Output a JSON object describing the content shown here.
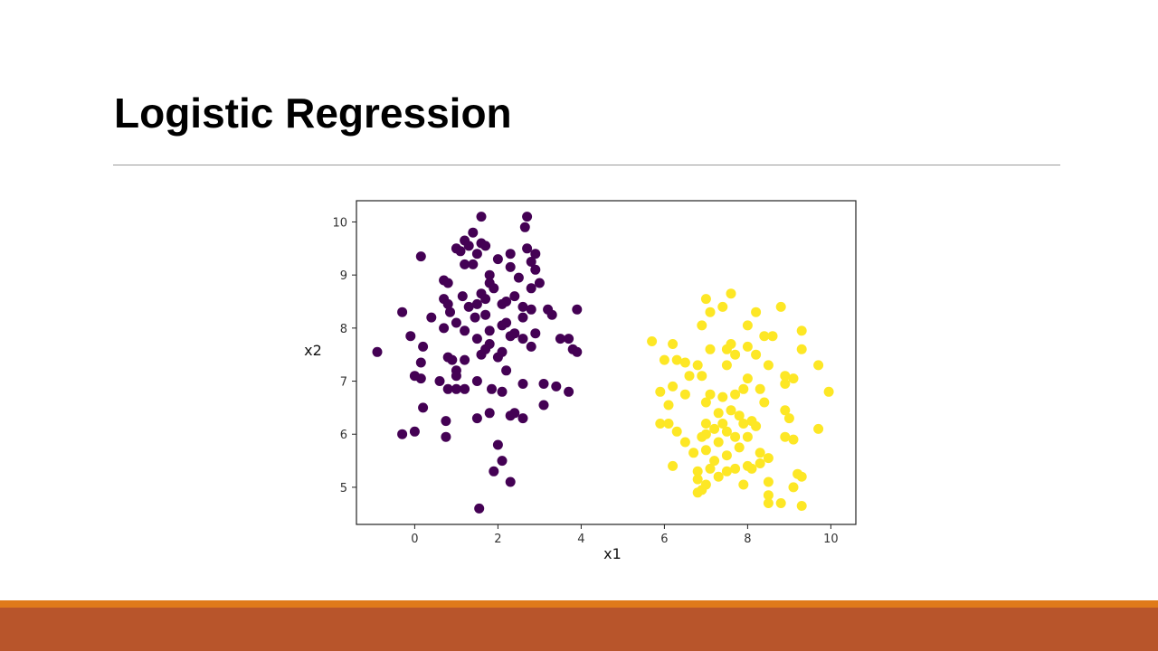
{
  "slide": {
    "title": "Logistic Regression"
  },
  "colors": {
    "class0": "#440154",
    "class1": "#fde725",
    "footer_stripe": "#e07a1a",
    "footer_bar": "#b8552b",
    "rule": "#9a9a9a"
  },
  "chart_data": {
    "type": "scatter",
    "title": "",
    "xlabel": "x1",
    "ylabel": "x2",
    "xlim": [
      -1.4,
      10.6
    ],
    "ylim": [
      4.3,
      10.4
    ],
    "xticks": [
      0,
      2,
      4,
      6,
      8,
      10
    ],
    "yticks": [
      5,
      6,
      7,
      8,
      9,
      10
    ],
    "grid": false,
    "legend": "none",
    "series": [
      {
        "color": "#440154",
        "points": [
          [
            2.7,
            10.1
          ],
          [
            1.6,
            10.1
          ],
          [
            2.65,
            9.9
          ],
          [
            1.4,
            9.8
          ],
          [
            1.2,
            9.65
          ],
          [
            1.6,
            9.6
          ],
          [
            1.0,
            9.5
          ],
          [
            1.3,
            9.55
          ],
          [
            1.7,
            9.55
          ],
          [
            2.7,
            9.5
          ],
          [
            1.1,
            9.45
          ],
          [
            1.5,
            9.4
          ],
          [
            2.3,
            9.4
          ],
          [
            2.9,
            9.4
          ],
          [
            0.15,
            9.35
          ],
          [
            2.0,
            9.3
          ],
          [
            2.8,
            9.25
          ],
          [
            1.2,
            9.2
          ],
          [
            1.4,
            9.2
          ],
          [
            2.3,
            9.15
          ],
          [
            2.9,
            9.1
          ],
          [
            1.8,
            9.0
          ],
          [
            2.5,
            8.95
          ],
          [
            0.7,
            8.9
          ],
          [
            0.8,
            8.85
          ],
          [
            1.8,
            8.85
          ],
          [
            3.0,
            8.85
          ],
          [
            2.8,
            8.75
          ],
          [
            1.9,
            8.75
          ],
          [
            1.6,
            8.65
          ],
          [
            2.4,
            8.6
          ],
          [
            0.7,
            8.55
          ],
          [
            1.15,
            8.6
          ],
          [
            1.7,
            8.55
          ],
          [
            2.2,
            8.5
          ],
          [
            0.8,
            8.45
          ],
          [
            1.5,
            8.45
          ],
          [
            2.1,
            8.45
          ],
          [
            2.6,
            8.4
          ],
          [
            1.3,
            8.4
          ],
          [
            2.8,
            8.35
          ],
          [
            3.2,
            8.35
          ],
          [
            3.9,
            8.35
          ],
          [
            -0.3,
            8.3
          ],
          [
            0.85,
            8.3
          ],
          [
            1.7,
            8.25
          ],
          [
            3.3,
            8.25
          ],
          [
            1.45,
            8.2
          ],
          [
            2.6,
            8.2
          ],
          [
            0.4,
            8.2
          ],
          [
            2.2,
            8.1
          ],
          [
            1.0,
            8.1
          ],
          [
            2.1,
            8.05
          ],
          [
            0.7,
            8.0
          ],
          [
            1.8,
            7.95
          ],
          [
            2.4,
            7.9
          ],
          [
            2.9,
            7.9
          ],
          [
            1.2,
            7.95
          ],
          [
            -0.1,
            7.85
          ],
          [
            2.3,
            7.85
          ],
          [
            2.6,
            7.8
          ],
          [
            1.5,
            7.8
          ],
          [
            3.5,
            7.8
          ],
          [
            3.7,
            7.8
          ],
          [
            0.2,
            7.65
          ],
          [
            1.8,
            7.7
          ],
          [
            2.8,
            7.65
          ],
          [
            3.8,
            7.6
          ],
          [
            1.7,
            7.6
          ],
          [
            2.1,
            7.55
          ],
          [
            -0.9,
            7.55
          ],
          [
            3.9,
            7.55
          ],
          [
            1.6,
            7.5
          ],
          [
            0.8,
            7.45
          ],
          [
            2.0,
            7.45
          ],
          [
            0.9,
            7.4
          ],
          [
            1.2,
            7.4
          ],
          [
            0.15,
            7.35
          ],
          [
            2.2,
            7.2
          ],
          [
            1.0,
            7.2
          ],
          [
            1.0,
            7.1
          ],
          [
            0.0,
            7.1
          ],
          [
            0.15,
            7.05
          ],
          [
            0.6,
            7.0
          ],
          [
            1.5,
            7.0
          ],
          [
            2.6,
            6.95
          ],
          [
            3.1,
            6.95
          ],
          [
            3.4,
            6.9
          ],
          [
            1.0,
            6.85
          ],
          [
            1.2,
            6.85
          ],
          [
            0.8,
            6.85
          ],
          [
            1.85,
            6.85
          ],
          [
            3.7,
            6.8
          ],
          [
            2.1,
            6.8
          ],
          [
            3.1,
            6.55
          ],
          [
            0.2,
            6.5
          ],
          [
            2.4,
            6.4
          ],
          [
            1.8,
            6.4
          ],
          [
            2.3,
            6.35
          ],
          [
            2.6,
            6.3
          ],
          [
            1.5,
            6.3
          ],
          [
            0.75,
            6.25
          ],
          [
            -0.3,
            6.0
          ],
          [
            0.0,
            6.05
          ],
          [
            0.75,
            5.95
          ],
          [
            2.0,
            5.8
          ],
          [
            2.1,
            5.5
          ],
          [
            1.9,
            5.3
          ],
          [
            2.3,
            5.1
          ],
          [
            1.55,
            4.6
          ]
        ]
      },
      {
        "color": "#fde725",
        "points": [
          [
            7.6,
            8.65
          ],
          [
            7.0,
            8.55
          ],
          [
            7.4,
            8.4
          ],
          [
            7.1,
            8.3
          ],
          [
            8.8,
            8.4
          ],
          [
            8.2,
            8.3
          ],
          [
            6.9,
            8.05
          ],
          [
            8.0,
            8.05
          ],
          [
            8.4,
            7.85
          ],
          [
            8.6,
            7.85
          ],
          [
            9.3,
            7.95
          ],
          [
            5.7,
            7.75
          ],
          [
            6.2,
            7.7
          ],
          [
            7.6,
            7.7
          ],
          [
            8.0,
            7.65
          ],
          [
            7.1,
            7.6
          ],
          [
            7.5,
            7.6
          ],
          [
            9.3,
            7.6
          ],
          [
            7.7,
            7.5
          ],
          [
            8.2,
            7.5
          ],
          [
            6.0,
            7.4
          ],
          [
            6.3,
            7.4
          ],
          [
            6.5,
            7.35
          ],
          [
            6.8,
            7.3
          ],
          [
            7.5,
            7.3
          ],
          [
            8.5,
            7.3
          ],
          [
            9.7,
            7.3
          ],
          [
            8.9,
            7.1
          ],
          [
            9.1,
            7.05
          ],
          [
            6.6,
            7.1
          ],
          [
            6.9,
            7.1
          ],
          [
            8.0,
            7.05
          ],
          [
            8.9,
            6.95
          ],
          [
            6.2,
            6.9
          ],
          [
            7.9,
            6.85
          ],
          [
            8.3,
            6.85
          ],
          [
            6.5,
            6.75
          ],
          [
            7.1,
            6.75
          ],
          [
            7.4,
            6.7
          ],
          [
            7.7,
            6.75
          ],
          [
            5.9,
            6.8
          ],
          [
            9.95,
            6.8
          ],
          [
            8.4,
            6.6
          ],
          [
            7.0,
            6.6
          ],
          [
            6.1,
            6.55
          ],
          [
            7.6,
            6.45
          ],
          [
            8.9,
            6.45
          ],
          [
            7.3,
            6.4
          ],
          [
            7.8,
            6.35
          ],
          [
            8.1,
            6.25
          ],
          [
            9.0,
            6.3
          ],
          [
            5.9,
            6.2
          ],
          [
            6.1,
            6.2
          ],
          [
            7.0,
            6.2
          ],
          [
            7.4,
            6.2
          ],
          [
            7.9,
            6.2
          ],
          [
            8.2,
            6.15
          ],
          [
            7.2,
            6.1
          ],
          [
            7.5,
            6.05
          ],
          [
            9.7,
            6.1
          ],
          [
            6.3,
            6.05
          ],
          [
            7.0,
            6.0
          ],
          [
            6.9,
            5.95
          ],
          [
            7.7,
            5.95
          ],
          [
            8.0,
            5.95
          ],
          [
            8.9,
            5.95
          ],
          [
            9.1,
            5.9
          ],
          [
            6.5,
            5.85
          ],
          [
            7.3,
            5.85
          ],
          [
            7.8,
            5.75
          ],
          [
            8.3,
            5.65
          ],
          [
            7.0,
            5.7
          ],
          [
            6.7,
            5.65
          ],
          [
            7.5,
            5.6
          ],
          [
            8.5,
            5.55
          ],
          [
            7.2,
            5.5
          ],
          [
            8.3,
            5.45
          ],
          [
            8.0,
            5.4
          ],
          [
            6.2,
            5.4
          ],
          [
            7.1,
            5.35
          ],
          [
            7.7,
            5.35
          ],
          [
            8.1,
            5.35
          ],
          [
            6.8,
            5.3
          ],
          [
            7.5,
            5.3
          ],
          [
            9.2,
            5.25
          ],
          [
            9.3,
            5.2
          ],
          [
            7.3,
            5.2
          ],
          [
            6.8,
            5.15
          ],
          [
            8.5,
            5.1
          ],
          [
            7.0,
            5.05
          ],
          [
            7.9,
            5.05
          ],
          [
            9.1,
            5.0
          ],
          [
            6.8,
            4.9
          ],
          [
            6.9,
            4.95
          ],
          [
            8.5,
            4.85
          ],
          [
            8.5,
            4.7
          ],
          [
            8.8,
            4.7
          ],
          [
            9.3,
            4.65
          ]
        ]
      }
    ]
  }
}
